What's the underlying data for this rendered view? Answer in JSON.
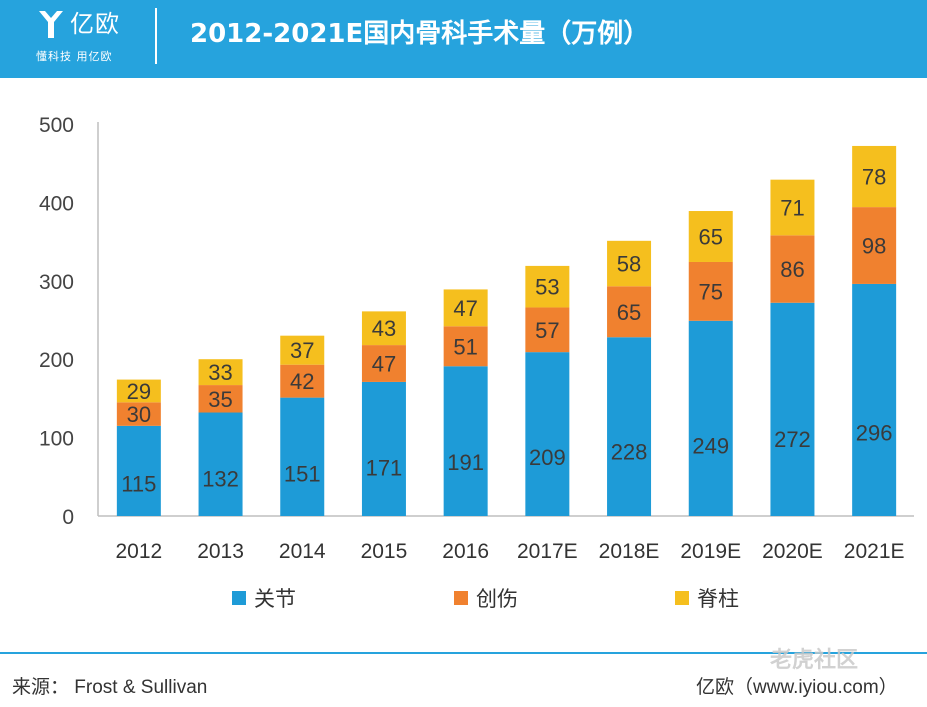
{
  "header": {
    "logo_name": "亿欧",
    "logo_slogan": "懂科技 用亿欧",
    "title": "2012-2021E国内骨科手术量（万例）"
  },
  "footer": {
    "source": "来源：  Frost & Sullivan",
    "brand": "亿欧（www.iyiou.com）"
  },
  "watermark": "老虎社区",
  "colors": {
    "header_bg": "#26a3dd",
    "joint": "#1e9bd7",
    "trauma": "#f0812f",
    "spine": "#f5bf1e"
  },
  "chart_data": {
    "type": "bar",
    "stacked": true,
    "title": "2012-2021E国内骨科手术量（万例）",
    "xlabel": "",
    "ylabel": "",
    "categories": [
      "2012",
      "2013",
      "2014",
      "2015",
      "2016",
      "2017E",
      "2018E",
      "2019E",
      "2020E",
      "2021E"
    ],
    "ylim": [
      0,
      500
    ],
    "yticks": [
      0,
      100,
      200,
      300,
      400,
      500
    ],
    "grid": false,
    "legend_position": "bottom",
    "series": [
      {
        "name": "关节",
        "color": "#1e9bd7",
        "values": [
          115,
          132,
          151,
          171,
          191,
          209,
          228,
          249,
          272,
          296
        ]
      },
      {
        "name": "创伤",
        "color": "#f0812f",
        "values": [
          30,
          35,
          42,
          47,
          51,
          57,
          65,
          75,
          86,
          98
        ]
      },
      {
        "name": "脊柱",
        "color": "#f5bf1e",
        "values": [
          29,
          33,
          37,
          43,
          47,
          53,
          58,
          65,
          71,
          78
        ]
      }
    ]
  }
}
